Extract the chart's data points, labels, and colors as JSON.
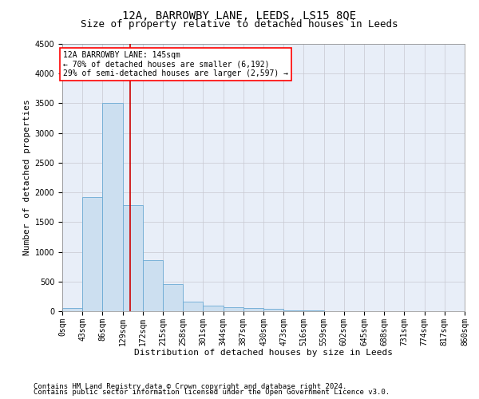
{
  "title": "12A, BARROWBY LANE, LEEDS, LS15 8QE",
  "subtitle": "Size of property relative to detached houses in Leeds",
  "xlabel": "Distribution of detached houses by size in Leeds",
  "ylabel": "Number of detached properties",
  "bar_color": "#ccdff0",
  "bar_edge_color": "#6aaad4",
  "vline_color": "#cc0000",
  "vline_x": 145,
  "annotation_line1": "12A BARROWBY LANE: 145sqm",
  "annotation_line2": "← 70% of detached houses are smaller (6,192)",
  "annotation_line3": "29% of semi-detached houses are larger (2,597) →",
  "bin_edges": [
    0,
    43,
    86,
    129,
    172,
    215,
    258,
    301,
    344,
    387,
    430,
    473,
    516,
    559,
    602,
    645,
    688,
    731,
    774,
    817,
    860
  ],
  "bin_values": [
    50,
    1920,
    3500,
    1780,
    860,
    460,
    160,
    100,
    70,
    55,
    40,
    20,
    8,
    5,
    3,
    2,
    1,
    1,
    0,
    0
  ],
  "ylim": [
    0,
    4500
  ],
  "yticks": [
    0,
    500,
    1000,
    1500,
    2000,
    2500,
    3000,
    3500,
    4000,
    4500
  ],
  "footer_line1": "Contains HM Land Registry data © Crown copyright and database right 2024.",
  "footer_line2": "Contains public sector information licensed under the Open Government Licence v3.0.",
  "bg_color": "#ffffff",
  "plot_bg_color": "#e8eef8",
  "grid_color": "#c8c8d0",
  "title_fontsize": 10,
  "subtitle_fontsize": 9,
  "axis_label_fontsize": 8,
  "tick_fontsize": 7,
  "annotation_fontsize": 7,
  "footer_fontsize": 6.5
}
